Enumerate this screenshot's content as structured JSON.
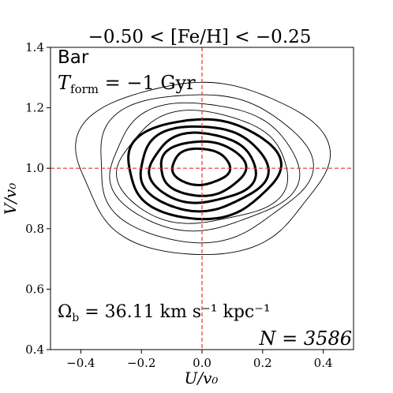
{
  "chart_data": {
    "type": "contour",
    "title": "−0.50 < [Fe/H] < −0.25",
    "xlabel": "U/v₀",
    "ylabel": "V/v₀",
    "xlim": [
      -0.5,
      0.5
    ],
    "ylim": [
      0.4,
      1.4
    ],
    "xticks": [
      -0.4,
      -0.2,
      0.0,
      0.2,
      0.4
    ],
    "xtick_labels": [
      "−0.4",
      "−0.2",
      "0.0",
      "0.2",
      "0.4"
    ],
    "yticks": [
      0.4,
      0.6,
      0.8,
      1.0,
      1.2,
      1.4
    ],
    "ytick_labels": [
      "0.4",
      "0.6",
      "0.8",
      "1.0",
      "1.2",
      "1.4"
    ],
    "reference_lines": {
      "x": 0.0,
      "y": 1.0,
      "color": "#e8332a",
      "style": "dashed"
    },
    "annotations": {
      "model": "Bar",
      "tform": "T_form = −1 Gyr",
      "tform_main": "T",
      "tform_sub": "form",
      "tform_rest": " = −1 Gyr",
      "omega": "Ω_b = 36.11 km s⁻¹ kpc⁻¹",
      "omega_main": "Ω",
      "omega_sub": "b",
      "omega_rest": " = 36.11 km s⁻¹ kpc⁻¹",
      "count": "N = 3586"
    },
    "contours": [
      {
        "level": 1,
        "style": "thin",
        "cx": -0.005,
        "cy": 1.005,
        "rx": 0.41,
        "ry": 0.285,
        "wobble": 0.045,
        "phase": 0.3
      },
      {
        "level": 2,
        "style": "thin",
        "cx": -0.005,
        "cy": 1.005,
        "rx": 0.35,
        "ry": 0.245,
        "wobble": 0.045,
        "phase": 1.1
      },
      {
        "level": 3,
        "style": "thin",
        "cx": 0.0,
        "cy": 1.005,
        "rx": 0.31,
        "ry": 0.21,
        "wobble": 0.04,
        "phase": 2.0
      },
      {
        "level": 4,
        "style": "thin",
        "cx": 0.0,
        "cy": 1.0,
        "rx": 0.28,
        "ry": 0.185,
        "wobble": 0.04,
        "phase": 2.6
      },
      {
        "level": 5,
        "style": "thick",
        "cx": 0.0,
        "cy": 1.0,
        "rx": 0.25,
        "ry": 0.165,
        "wobble": 0.035,
        "phase": 0.7
      },
      {
        "level": 6,
        "style": "thick",
        "cx": 0.0,
        "cy": 1.0,
        "rx": 0.21,
        "ry": 0.14,
        "wobble": 0.035,
        "phase": 1.6
      },
      {
        "level": 7,
        "style": "thick",
        "cx": 0.0,
        "cy": 1.0,
        "rx": 0.175,
        "ry": 0.115,
        "wobble": 0.035,
        "phase": 2.4
      },
      {
        "level": 8,
        "style": "thick",
        "cx": 0.0,
        "cy": 1.0,
        "rx": 0.14,
        "ry": 0.09,
        "wobble": 0.03,
        "phase": 0.9
      },
      {
        "level": 9,
        "style": "thick",
        "cx": -0.005,
        "cy": 1.005,
        "rx": 0.095,
        "ry": 0.06,
        "wobble": 0.03,
        "phase": 1.9
      }
    ]
  }
}
